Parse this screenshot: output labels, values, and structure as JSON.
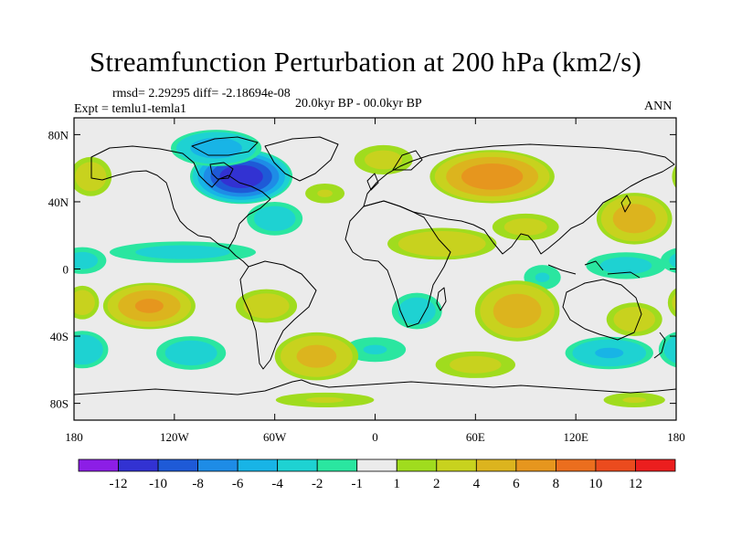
{
  "chart_data": {
    "type": "heatmap",
    "title": "Streamfunction Perturbation at 200 hPa (km2/s)",
    "stats": "rmsd= 2.29295 diff= -2.18694e-08",
    "experiment": "Expt = temlu1-temla1",
    "period": "20.0kyr BP - 00.0kyr BP",
    "season": "ANN",
    "xlim": [
      -180,
      180
    ],
    "ylim": [
      -90,
      90
    ],
    "x_ticks": [
      {
        "value": -180,
        "label": "180"
      },
      {
        "value": -120,
        "label": "120W"
      },
      {
        "value": -60,
        "label": "60W"
      },
      {
        "value": 0,
        "label": "0"
      },
      {
        "value": 60,
        "label": "60E"
      },
      {
        "value": 120,
        "label": "120E"
      },
      {
        "value": 180,
        "label": "180"
      }
    ],
    "y_ticks": [
      {
        "value": 80,
        "label": "80N"
      },
      {
        "value": 40,
        "label": "40N"
      },
      {
        "value": 0,
        "label": "0"
      },
      {
        "value": -40,
        "label": "40S"
      },
      {
        "value": -80,
        "label": "80S"
      }
    ],
    "colorbar": {
      "colors": [
        "#8c1ee6",
        "#3232d2",
        "#1e5ad7",
        "#1e8ce6",
        "#18b4e6",
        "#1ed2d2",
        "#2ae6a0",
        "#ebebeb",
        "#a0dc1e",
        "#c8d21e",
        "#dcb41e",
        "#e6961e",
        "#eb6e1e",
        "#eb4b1e",
        "#eb1e1e"
      ],
      "bounds": [
        -14,
        -12,
        -10,
        -8,
        -6,
        -4,
        -2,
        -1,
        1,
        2,
        4,
        6,
        8,
        10,
        12,
        14
      ],
      "labels": [
        "-12",
        "-10",
        "-8",
        "-6",
        "-4",
        "-2",
        "-1",
        "1",
        "2",
        "4",
        "6",
        "8",
        "10",
        "12"
      ]
    },
    "anomaly_centers": [
      {
        "lon": -80,
        "lat": 55,
        "value": -11,
        "rlon": 32,
        "rlat": 17
      },
      {
        "lon": -95,
        "lat": 72,
        "value": -5,
        "rlon": 30,
        "rlat": 12
      },
      {
        "lon": -60,
        "lat": 30,
        "value": -3,
        "rlon": 20,
        "rlat": 12
      },
      {
        "lon": 70,
        "lat": 55,
        "value": 7,
        "rlon": 40,
        "rlat": 17
      },
      {
        "lon": 5,
        "lat": 65,
        "value": 2.5,
        "rlon": 22,
        "rlat": 11
      },
      {
        "lon": -170,
        "lat": 55,
        "value": 3,
        "rlon": 15,
        "rlat": 14
      },
      {
        "lon": 155,
        "lat": 30,
        "value": 5,
        "rlon": 25,
        "rlat": 17
      },
      {
        "lon": -30,
        "lat": 45,
        "value": 2,
        "rlon": 16,
        "rlat": 8
      },
      {
        "lon": 40,
        "lat": 15,
        "value": 3.5,
        "rlon": 38,
        "rlat": 11
      },
      {
        "lon": 90,
        "lat": 25,
        "value": 2.5,
        "rlon": 25,
        "rlat": 10
      },
      {
        "lon": -115,
        "lat": 10,
        "value": -2.5,
        "rlon": 55,
        "rlat": 8
      },
      {
        "lon": -175,
        "lat": 5,
        "value": -2.5,
        "rlon": 18,
        "rlat": 10
      },
      {
        "lon": 150,
        "lat": 2,
        "value": -2.5,
        "rlon": 30,
        "rlat": 10
      },
      {
        "lon": 100,
        "lat": -5,
        "value": -2,
        "rlon": 15,
        "rlat": 10
      },
      {
        "lon": -135,
        "lat": -22,
        "value": 6,
        "rlon": 30,
        "rlat": 15
      },
      {
        "lon": -65,
        "lat": -22,
        "value": 3,
        "rlon": 22,
        "rlat": 12
      },
      {
        "lon": -175,
        "lat": -20,
        "value": 3,
        "rlon": 12,
        "rlat": 12
      },
      {
        "lon": 25,
        "lat": -25,
        "value": -3,
        "rlon": 18,
        "rlat": 13
      },
      {
        "lon": 85,
        "lat": -25,
        "value": 5,
        "rlon": 28,
        "rlat": 20
      },
      {
        "lon": 155,
        "lat": -30,
        "value": 3,
        "rlon": 20,
        "rlat": 12
      },
      {
        "lon": -175,
        "lat": -48,
        "value": -3.5,
        "rlon": 18,
        "rlat": 13
      },
      {
        "lon": -110,
        "lat": -50,
        "value": -3,
        "rlon": 25,
        "rlat": 12
      },
      {
        "lon": 0,
        "lat": -48,
        "value": -2,
        "rlon": 25,
        "rlat": 10
      },
      {
        "lon": 140,
        "lat": -50,
        "value": -4,
        "rlon": 30,
        "rlat": 11
      },
      {
        "lon": -35,
        "lat": -52,
        "value": 4.5,
        "rlon": 28,
        "rlat": 16
      },
      {
        "lon": 60,
        "lat": -57,
        "value": 2.5,
        "rlon": 30,
        "rlat": 10
      },
      {
        "lon": -30,
        "lat": -78,
        "value": 2,
        "rlon": 40,
        "rlat": 6
      },
      {
        "lon": 155,
        "lat": -78,
        "value": 2,
        "rlon": 25,
        "rlat": 6
      }
    ]
  }
}
